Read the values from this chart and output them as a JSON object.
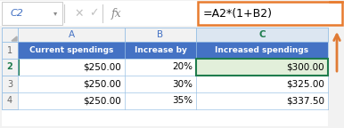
{
  "cell_ref": "C2",
  "formula": "=A2*(1+B2)",
  "formula_bar_bg": "#ffffff",
  "formula_bar_border": "#e87b2e",
  "header_row": [
    "Current spendings",
    "Increase by",
    "Increased spendings"
  ],
  "header_bg": "#4472c4",
  "header_text_color": "#ffffff",
  "col_c_header_bg": "#d6dce4",
  "col_c_header_text_color": "#1f7c4d",
  "data_rows": [
    [
      "$250.00",
      "20%",
      "$300.00"
    ],
    [
      "$250.00",
      "30%",
      "$325.00"
    ],
    [
      "$250.00",
      "35%",
      "$337.50"
    ]
  ],
  "row2_border_color": "#1f7c4d",
  "row2_col_c_bg": "#e2efda",
  "grid_color": "#9dc3e6",
  "cell_ref_border": "#cccccc",
  "row_num_color_active": "#1f7c4d",
  "arrow_color": "#e07b35",
  "col_letter_color_ab": "#4472c4",
  "col_letter_color_c": "#1f7c4d",
  "sheet_bg": "#f2f2f2",
  "row_hdr_bg": "#f2f2f2",
  "col_hdr_bg": "#f2f2f2",
  "col_c_hdr_bg": "#dce6f1",
  "white": "#ffffff",
  "row_divider_color": "#9dc3e6",
  "formula_bar_sep_color": "#cccccc",
  "icon_color": "#c0c0c0",
  "fx_color": "#888888"
}
